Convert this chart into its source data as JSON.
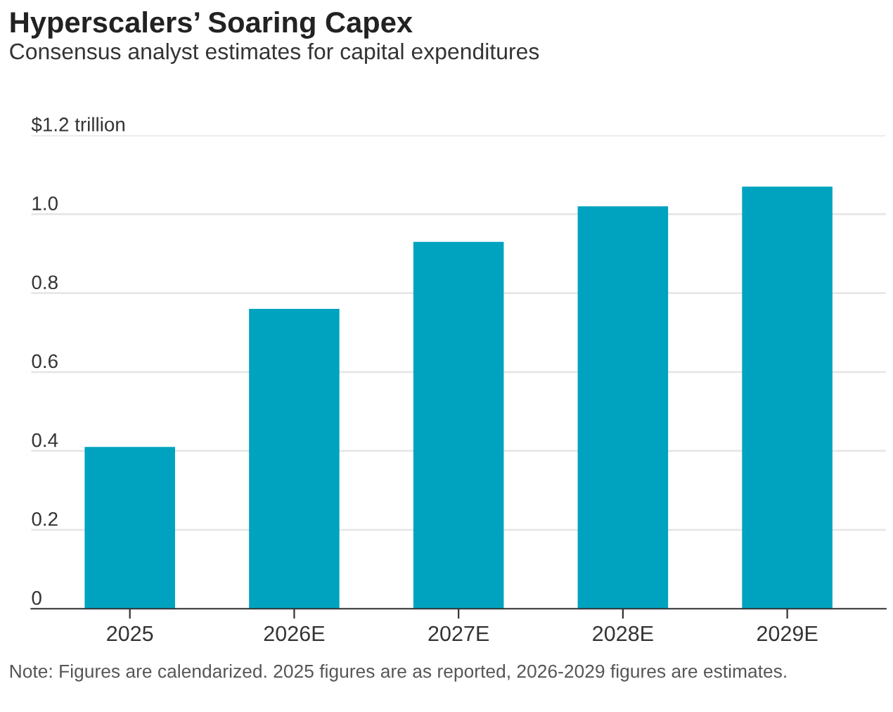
{
  "chart_data": {
    "type": "bar",
    "title": "Hyperscalers’ Soaring Capex",
    "subtitle": "Consensus analyst estimates for capital expenditures",
    "categories": [
      "2025",
      "2026E",
      "2027E",
      "2028E",
      "2029E"
    ],
    "values": [
      0.41,
      0.76,
      0.93,
      1.02,
      1.07
    ],
    "color": "#00a3bf",
    "ylim": [
      0,
      1.2
    ],
    "yticks": [
      0,
      0.2,
      0.4,
      0.6,
      0.8,
      {
        "value": 1.0,
        "label": "1.0"
      },
      {
        "value": 1.2,
        "label": "$1.2 trillion"
      }
    ],
    "grid": "y",
    "annotations": [
      "Note: Figures are calendarized. 2025 figures are as reported, 2026-2029 figures are estimates."
    ]
  }
}
